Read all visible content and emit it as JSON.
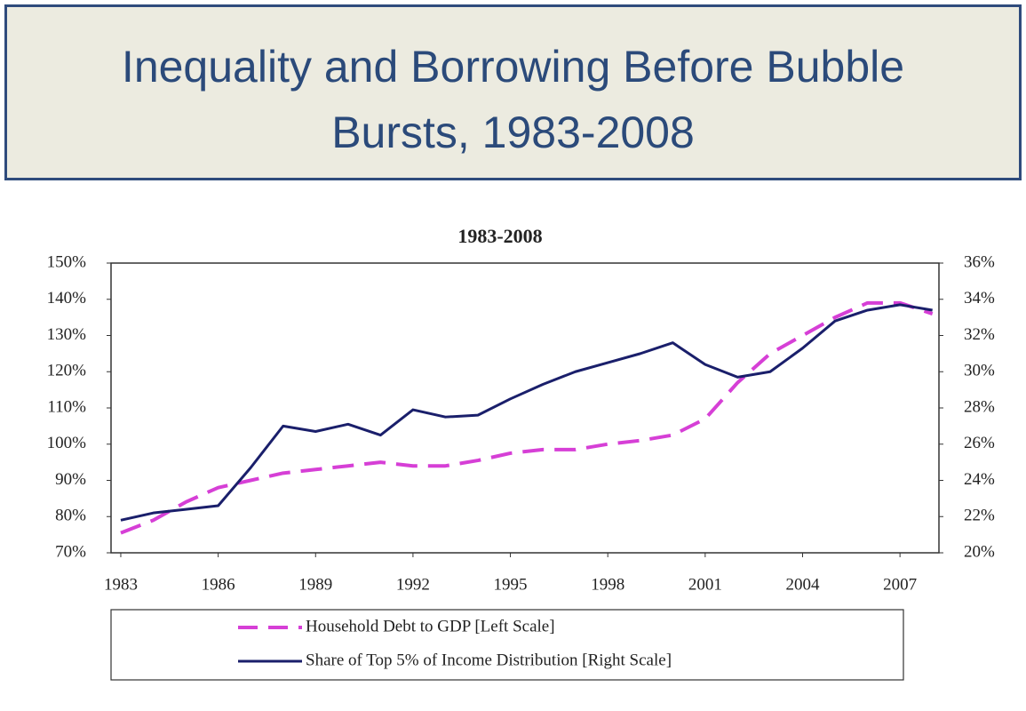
{
  "slide": {
    "title": "Inequality and Borrowing Before Bubble Bursts, 1983-2008"
  },
  "chart_data": {
    "type": "line",
    "title": "1983-2008",
    "x": [
      1983,
      1984,
      1985,
      1986,
      1987,
      1988,
      1989,
      1990,
      1991,
      1992,
      1993,
      1994,
      1995,
      1996,
      1997,
      1998,
      1999,
      2000,
      2001,
      2002,
      2003,
      2004,
      2005,
      2006,
      2007,
      2008
    ],
    "xlim": [
      1982.7,
      2008.2
    ],
    "xticks": [
      1983,
      1986,
      1989,
      1992,
      1995,
      1998,
      2001,
      2004,
      2007
    ],
    "ylim": [
      70,
      150
    ],
    "yticks": [
      {
        "value": 70,
        "label": "70%"
      },
      {
        "value": 80,
        "label": "80%"
      },
      {
        "value": 90,
        "label": "90%"
      },
      {
        "value": 100,
        "label": "100%"
      },
      {
        "value": 110,
        "label": "110%"
      },
      {
        "value": 120,
        "label": "120%"
      },
      {
        "value": 130,
        "label": "130%"
      },
      {
        "value": 140,
        "label": "140%"
      },
      {
        "value": 150,
        "label": "150%"
      }
    ],
    "y2lim": [
      20,
      36
    ],
    "y2ticks": [
      {
        "value": 20,
        "label": "20%"
      },
      {
        "value": 22,
        "label": "22%"
      },
      {
        "value": 24,
        "label": "24%"
      },
      {
        "value": 26,
        "label": "26%"
      },
      {
        "value": 28,
        "label": "28%"
      },
      {
        "value": 30,
        "label": "30%"
      },
      {
        "value": 32,
        "label": "32%"
      },
      {
        "value": 34,
        "label": "34%"
      },
      {
        "value": 36,
        "label": "36%"
      }
    ],
    "legend": "bottom",
    "series": [
      {
        "name": "Household Debt to GDP [Left Scale]",
        "color": "#d63fd6",
        "line_style": "dashed",
        "values": [
          75.5,
          79,
          84,
          88,
          90,
          92,
          93,
          94,
          95,
          94,
          94,
          95.5,
          97.5,
          98.5,
          98.5,
          100,
          101,
          102.5,
          107,
          117,
          125,
          130,
          135,
          139,
          139,
          136
        ]
      },
      {
        "name": "Share of Top 5% of Income Distribution [Right Scale]",
        "color": "#1a1f6b",
        "line_style": "solid",
        "axis": "y2",
        "values": [
          21.8,
          22.2,
          22.4,
          22.6,
          24.7,
          27.0,
          26.7,
          27.1,
          26.5,
          27.9,
          27.5,
          27.6,
          28.5,
          29.3,
          30.0,
          30.5,
          31.0,
          31.6,
          30.4,
          29.7,
          30.0,
          31.3,
          32.8,
          33.4,
          33.7,
          33.4
        ]
      }
    ]
  }
}
